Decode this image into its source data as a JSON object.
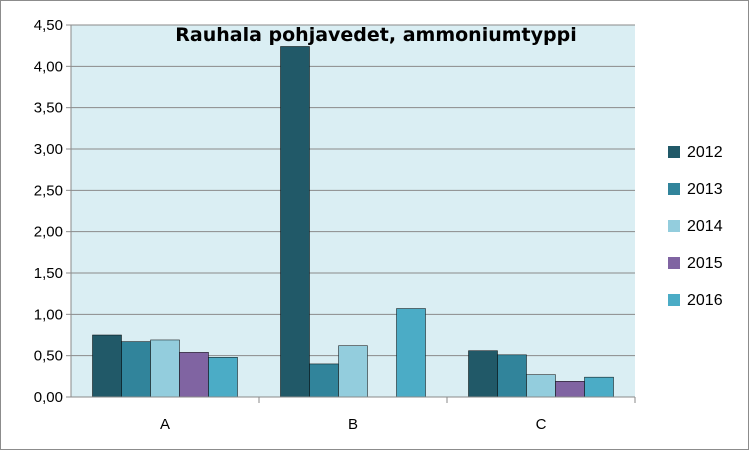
{
  "chart_data": {
    "type": "bar",
    "title": "Rauhala pohjavedet, ammoniumtyppi",
    "xlabel": "",
    "ylabel": "",
    "categories": [
      "A",
      "B",
      "C"
    ],
    "series": [
      {
        "name": "2012",
        "values": [
          0.75,
          4.24,
          0.56
        ],
        "color": "#215968"
      },
      {
        "name": "2013",
        "values": [
          0.67,
          0.4,
          0.51
        ],
        "color": "#31849B"
      },
      {
        "name": "2014",
        "values": [
          0.69,
          0.62,
          0.27
        ],
        "color": "#93CDDD"
      },
      {
        "name": "2015",
        "values": [
          0.54,
          null,
          0.19
        ],
        "color": "#8064A2"
      },
      {
        "name": "2016",
        "values": [
          0.48,
          1.07,
          0.24
        ],
        "color": "#4BACC6"
      }
    ],
    "ylim": [
      0,
      4.5
    ],
    "yticks": [
      "0,00",
      "0,50",
      "1,00",
      "1,50",
      "2,00",
      "2,50",
      "3,00",
      "3,50",
      "4,00",
      "4,50"
    ],
    "grid": true,
    "legend": "right",
    "plot_background": "#DAEEF3"
  }
}
